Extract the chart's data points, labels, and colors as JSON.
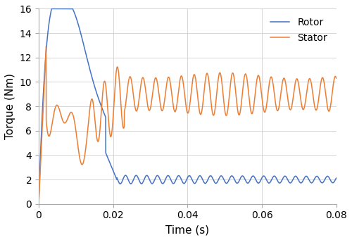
{
  "title": "",
  "xlabel": "Time (s)",
  "ylabel": "Torque (Nm)",
  "xlim": [
    0,
    0.08
  ],
  "ylim": [
    0,
    16
  ],
  "yticks": [
    0,
    2,
    4,
    6,
    8,
    10,
    12,
    14,
    16
  ],
  "xticks": [
    0,
    0.02,
    0.04,
    0.06,
    0.08
  ],
  "rotor_color": "#4472C4",
  "stator_color": "#ED7D31",
  "legend_labels": [
    "Rotor",
    "Stator"
  ],
  "background_color": "#ffffff",
  "grid_color": "#d0d0d0",
  "linewidth": 1.1,
  "rotor_peak": 14.5,
  "rotor_peak_t": 0.003,
  "rotor_decay_tau": 0.006,
  "rotor_osc_freq": 120,
  "rotor_steady": 2.0,
  "rotor_drop_t": 0.018,
  "stator_peak": 13.0,
  "stator_peak_t": 0.002,
  "stator_settle": 9.0,
  "stator_osc_freq": 300,
  "stator_amp_steady": 1.3
}
